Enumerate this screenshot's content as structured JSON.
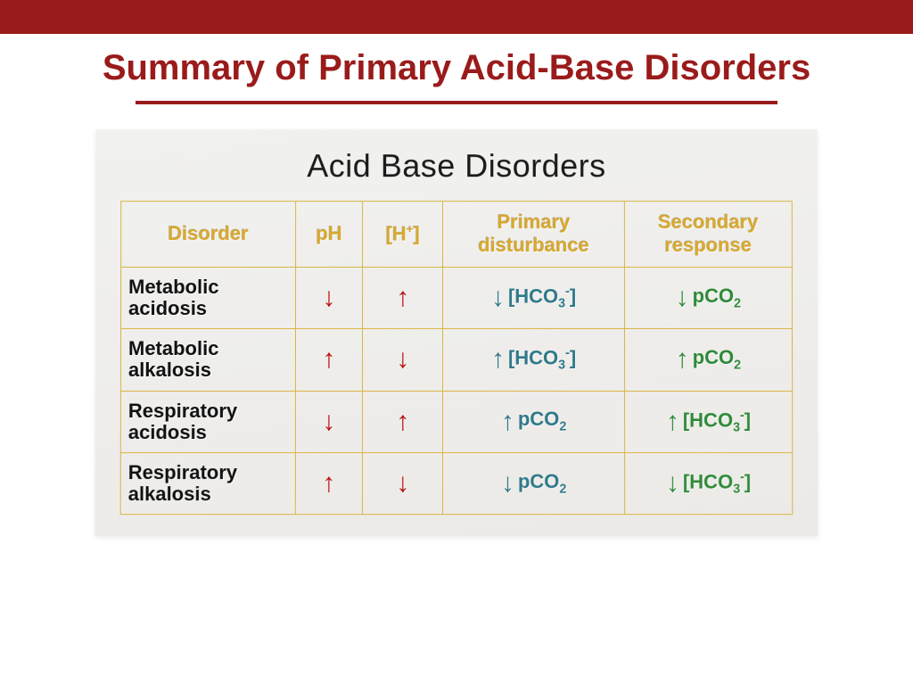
{
  "colors": {
    "slide_accent": "#9a1b1b",
    "header_text": "#d8a92e",
    "border": "#d8b646",
    "content_bg_start": "#f1f1ef",
    "content_bg_end": "#eceae7",
    "arrow_red": "#b81212",
    "arrow_teal": "#2f7a8a",
    "arrow_green": "#2f8a3a",
    "row_label": "#111111",
    "subtitle": "#1a1a1a"
  },
  "typography": {
    "slide_title_pt": 40,
    "subtitle_pt": 36,
    "header_pt": 22,
    "cell_pt": 22,
    "arrow_pt": 30
  },
  "slide_title": "Summary of Primary Acid-Base Disorders",
  "subtitle": "Acid Base Disorders",
  "table": {
    "column_widths_pct": [
      26,
      10,
      12,
      27,
      25
    ],
    "headers": {
      "c1": "Disorder",
      "c2": "pH",
      "c3_html": "[H<sup>+</sup>]",
      "c4_line1": "Primary",
      "c4_line2": "disturbance",
      "c5_line1": "Secondary",
      "c5_line2": "response"
    },
    "rows": [
      {
        "label_line1": "Metabolic",
        "label_line2": "acidosis",
        "ph": {
          "dir": "down",
          "color": "red"
        },
        "h": {
          "dir": "up",
          "color": "red"
        },
        "primary": {
          "dir": "down",
          "arrow_color": "teal",
          "species": "hco3",
          "species_color": "teal"
        },
        "secondary": {
          "dir": "down",
          "arrow_color": "green",
          "species": "pco2",
          "species_color": "green"
        }
      },
      {
        "label_line1": "Metabolic",
        "label_line2": "alkalosis",
        "ph": {
          "dir": "up",
          "color": "red"
        },
        "h": {
          "dir": "down",
          "color": "red"
        },
        "primary": {
          "dir": "up",
          "arrow_color": "teal",
          "species": "hco3",
          "species_color": "teal"
        },
        "secondary": {
          "dir": "up",
          "arrow_color": "green",
          "species": "pco2",
          "species_color": "green"
        }
      },
      {
        "label_line1": "Respiratory",
        "label_line2": "acidosis",
        "ph": {
          "dir": "down",
          "color": "red"
        },
        "h": {
          "dir": "up",
          "color": "red"
        },
        "primary": {
          "dir": "up",
          "arrow_color": "teal",
          "species": "pco2",
          "species_color": "teal"
        },
        "secondary": {
          "dir": "up",
          "arrow_color": "green",
          "species": "hco3",
          "species_color": "green"
        }
      },
      {
        "label_line1": "Respiratory",
        "label_line2": "alkalosis",
        "ph": {
          "dir": "up",
          "color": "red"
        },
        "h": {
          "dir": "down",
          "color": "red"
        },
        "primary": {
          "dir": "down",
          "arrow_color": "teal",
          "species": "pco2",
          "species_color": "teal"
        },
        "secondary": {
          "dir": "down",
          "arrow_color": "green",
          "species": "hco3",
          "species_color": "green"
        }
      }
    ]
  },
  "glyphs": {
    "up": "↑",
    "down": "↓"
  },
  "species_html": {
    "hco3": "[HCO<sub>3</sub><sup>-</sup>]",
    "pco2": "pCO<sub>2</sub>"
  }
}
